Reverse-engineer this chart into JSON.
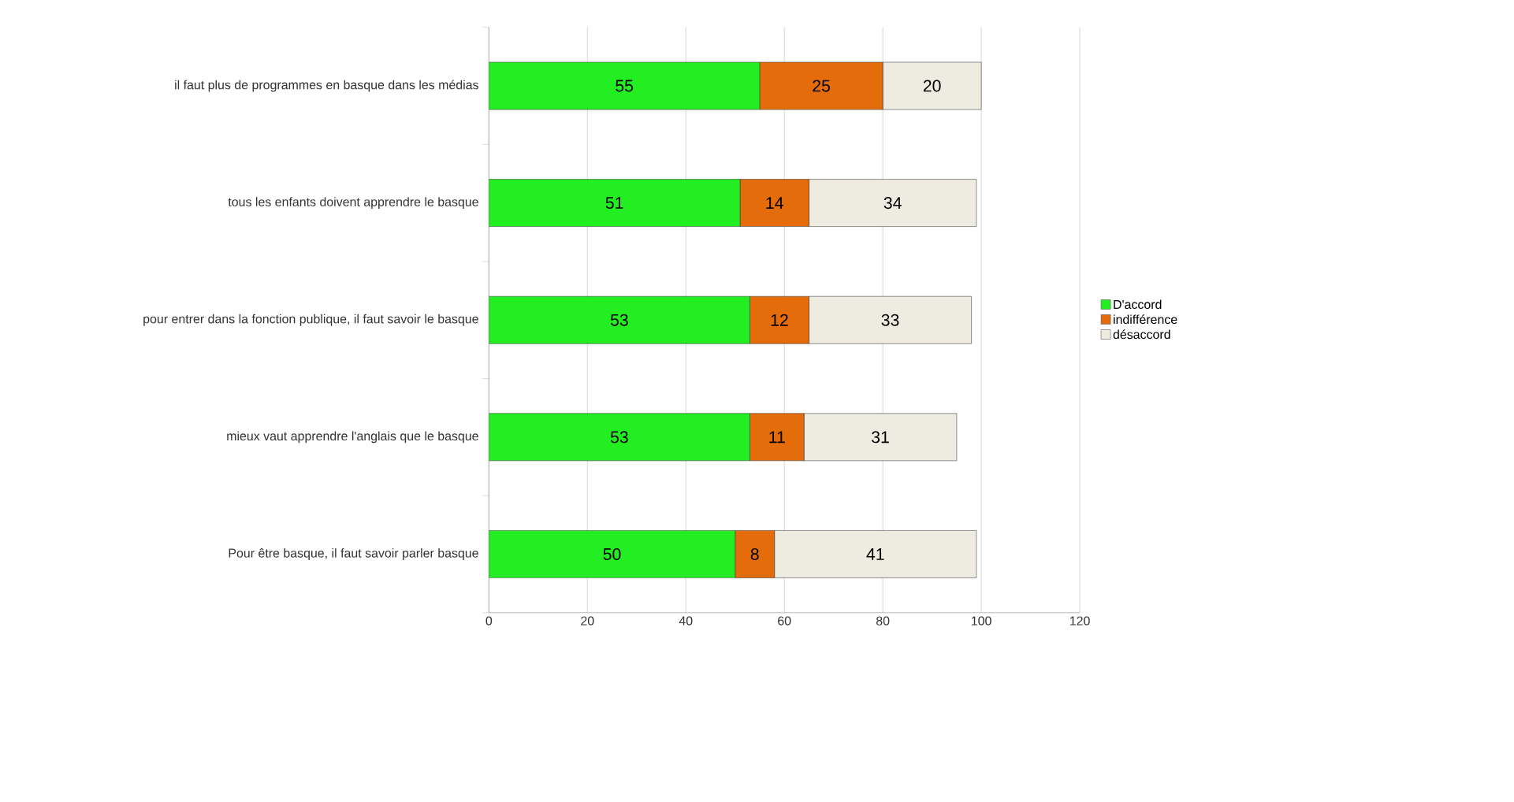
{
  "chart_data": {
    "type": "bar",
    "orientation": "horizontal",
    "stacked": true,
    "categories": [
      "il faut plus de programmes en basque dans les médias",
      "tous les enfants doivent apprendre le basque",
      "pour entrer dans la fonction publique, il faut savoir le basque",
      "mieux vaut apprendre l'anglais que le basque",
      "Pour être basque, il faut savoir parler basque"
    ],
    "series": [
      {
        "name": "D'accord",
        "color": "#22ee22",
        "values": [
          55,
          51,
          53,
          53,
          50
        ]
      },
      {
        "name": "indifférence",
        "color": "#e46c0a",
        "values": [
          25,
          14,
          12,
          11,
          8
        ]
      },
      {
        "name": "désaccord",
        "color": "#eeece1",
        "values": [
          20,
          34,
          33,
          31,
          41
        ]
      }
    ],
    "xlim": [
      0,
      120
    ],
    "xticks": [
      0,
      20,
      40,
      60,
      80,
      100,
      120
    ],
    "grid": "x",
    "legend": "right",
    "data_labels": true
  }
}
